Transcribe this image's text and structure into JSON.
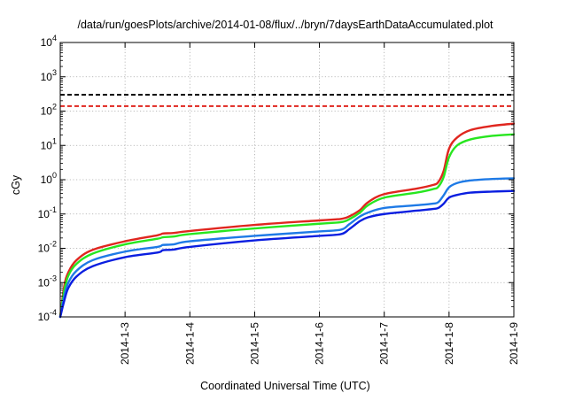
{
  "chart_data": {
    "type": "line",
    "title": "/data/run/goesPlots/archive/2014-01-08/flux/../bryn/7daysEarthDataAccumulated.plot",
    "xlabel": "Coordinated Universal Time (UTC)",
    "ylabel": "cGy",
    "x_tick_labels": [
      "2014-1-3",
      "2014-1-4",
      "2014-1-5",
      "2014-1-6",
      "2014-1-7",
      "2014-1-8",
      "2014-1-9"
    ],
    "x_ticks": [
      "2014-01-03",
      "2014-01-04",
      "2014-01-05",
      "2014-01-06",
      "2014-01-07",
      "2014-01-08",
      "2014-01-09"
    ],
    "xlim": [
      "2014-01-02T00:00",
      "2014-01-09T00:00"
    ],
    "y_scale": "log",
    "ylim": [
      0.0001,
      10000
    ],
    "y_ticks": [
      {
        "base": "10",
        "exp": "-4",
        "value": 0.0001
      },
      {
        "base": "10",
        "exp": "-3",
        "value": 0.001
      },
      {
        "base": "10",
        "exp": "-2",
        "value": 0.01
      },
      {
        "base": "10",
        "exp": "-1",
        "value": 0.1
      },
      {
        "base": "10",
        "exp": "0",
        "value": 1
      },
      {
        "base": "10",
        "exp": "1",
        "value": 10
      },
      {
        "base": "10",
        "exp": "2",
        "value": 100
      },
      {
        "base": "10",
        "exp": "3",
        "value": 1000
      },
      {
        "base": "10",
        "exp": "4",
        "value": 10000
      }
    ],
    "grid": true,
    "legend": "none",
    "series": [
      {
        "color": "#e0261f",
        "points": [
          [
            "2014-01-02T00:00",
            0.0001
          ],
          [
            "2014-01-02T01:30",
            0.0008
          ],
          [
            "2014-01-02T03:00",
            0.002
          ],
          [
            "2014-01-02T06:00",
            0.0045
          ],
          [
            "2014-01-02T12:00",
            0.009
          ],
          [
            "2014-01-03T00:00",
            0.016
          ],
          [
            "2014-01-03T12:00",
            0.024
          ],
          [
            "2014-01-03T14:00",
            0.027
          ],
          [
            "2014-01-03T18:00",
            0.028
          ],
          [
            "2014-01-04T00:00",
            0.032
          ],
          [
            "2014-01-05T00:00",
            0.048
          ],
          [
            "2014-01-06T00:00",
            0.065
          ],
          [
            "2014-01-06T08:00",
            0.072
          ],
          [
            "2014-01-06T11:00",
            0.085
          ],
          [
            "2014-01-06T15:00",
            0.13
          ],
          [
            "2014-01-06T18:00",
            0.22
          ],
          [
            "2014-01-07T00:00",
            0.38
          ],
          [
            "2014-01-07T12:00",
            0.55
          ],
          [
            "2014-01-07T18:00",
            0.7
          ],
          [
            "2014-01-07T20:00",
            0.85
          ],
          [
            "2014-01-07T22:00",
            1.8
          ],
          [
            "2014-01-08T00:00",
            8
          ],
          [
            "2014-01-08T03:00",
            17
          ],
          [
            "2014-01-08T08:00",
            28
          ],
          [
            "2014-01-08T16:00",
            37
          ],
          [
            "2014-01-09T00:00",
            43
          ]
        ]
      },
      {
        "color": "#27e61f",
        "points": [
          [
            "2014-01-02T00:00",
            0.0001
          ],
          [
            "2014-01-02T01:30",
            0.0006
          ],
          [
            "2014-01-02T03:00",
            0.0016
          ],
          [
            "2014-01-02T06:00",
            0.0035
          ],
          [
            "2014-01-02T12:00",
            0.007
          ],
          [
            "2014-01-03T00:00",
            0.013
          ],
          [
            "2014-01-03T12:00",
            0.019
          ],
          [
            "2014-01-03T14:00",
            0.021
          ],
          [
            "2014-01-03T18:00",
            0.022
          ],
          [
            "2014-01-04T00:00",
            0.026
          ],
          [
            "2014-01-05T00:00",
            0.038
          ],
          [
            "2014-01-06T00:00",
            0.052
          ],
          [
            "2014-01-06T08:00",
            0.058
          ],
          [
            "2014-01-06T11:00",
            0.07
          ],
          [
            "2014-01-06T15:00",
            0.11
          ],
          [
            "2014-01-06T18:00",
            0.18
          ],
          [
            "2014-01-07T00:00",
            0.3
          ],
          [
            "2014-01-07T12:00",
            0.42
          ],
          [
            "2014-01-07T18:00",
            0.53
          ],
          [
            "2014-01-07T20:00",
            0.62
          ],
          [
            "2014-01-07T22:00",
            1.2
          ],
          [
            "2014-01-08T00:00",
            4.5
          ],
          [
            "2014-01-08T03:00",
            10
          ],
          [
            "2014-01-08T08:00",
            15
          ],
          [
            "2014-01-08T16:00",
            19
          ],
          [
            "2014-01-09T00:00",
            21
          ]
        ]
      },
      {
        "color": "#1e7ae6",
        "points": [
          [
            "2014-01-02T00:00",
            0.0001
          ],
          [
            "2014-01-02T01:30",
            0.0004
          ],
          [
            "2014-01-02T03:00",
            0.001
          ],
          [
            "2014-01-02T06:00",
            0.0022
          ],
          [
            "2014-01-02T12:00",
            0.0045
          ],
          [
            "2014-01-03T00:00",
            0.008
          ],
          [
            "2014-01-03T12:00",
            0.011
          ],
          [
            "2014-01-03T14:00",
            0.0125
          ],
          [
            "2014-01-03T18:00",
            0.013
          ],
          [
            "2014-01-04T00:00",
            0.016
          ],
          [
            "2014-01-05T00:00",
            0.023
          ],
          [
            "2014-01-06T00:00",
            0.031
          ],
          [
            "2014-01-06T08:00",
            0.035
          ],
          [
            "2014-01-06T11:00",
            0.05
          ],
          [
            "2014-01-06T15:00",
            0.085
          ],
          [
            "2014-01-06T18:00",
            0.11
          ],
          [
            "2014-01-07T00:00",
            0.15
          ],
          [
            "2014-01-07T12:00",
            0.18
          ],
          [
            "2014-01-07T18:00",
            0.2
          ],
          [
            "2014-01-07T20:00",
            0.22
          ],
          [
            "2014-01-07T22:00",
            0.35
          ],
          [
            "2014-01-08T00:00",
            0.6
          ],
          [
            "2014-01-08T03:00",
            0.8
          ],
          [
            "2014-01-08T08:00",
            0.95
          ],
          [
            "2014-01-08T16:00",
            1.05
          ],
          [
            "2014-01-09T00:00",
            1.1
          ]
        ]
      },
      {
        "color": "#0a1ee0",
        "points": [
          [
            "2014-01-02T00:00",
            0.0001
          ],
          [
            "2014-01-02T01:30",
            0.0003
          ],
          [
            "2014-01-02T03:00",
            0.0007
          ],
          [
            "2014-01-02T06:00",
            0.0015
          ],
          [
            "2014-01-02T12:00",
            0.003
          ],
          [
            "2014-01-03T00:00",
            0.0055
          ],
          [
            "2014-01-03T12:00",
            0.0075
          ],
          [
            "2014-01-03T14:00",
            0.0088
          ],
          [
            "2014-01-03T18:00",
            0.0092
          ],
          [
            "2014-01-04T00:00",
            0.011
          ],
          [
            "2014-01-05T00:00",
            0.017
          ],
          [
            "2014-01-06T00:00",
            0.023
          ],
          [
            "2014-01-06T08:00",
            0.026
          ],
          [
            "2014-01-06T11:00",
            0.036
          ],
          [
            "2014-01-06T15:00",
            0.062
          ],
          [
            "2014-01-06T18:00",
            0.08
          ],
          [
            "2014-01-07T00:00",
            0.1
          ],
          [
            "2014-01-07T12:00",
            0.125
          ],
          [
            "2014-01-07T18:00",
            0.14
          ],
          [
            "2014-01-07T20:00",
            0.15
          ],
          [
            "2014-01-07T22:00",
            0.2
          ],
          [
            "2014-01-08T00:00",
            0.3
          ],
          [
            "2014-01-08T03:00",
            0.36
          ],
          [
            "2014-01-08T08:00",
            0.42
          ],
          [
            "2014-01-08T16:00",
            0.45
          ],
          [
            "2014-01-09T00:00",
            0.47
          ]
        ]
      }
    ],
    "threshold_lines": [
      {
        "value": 300,
        "color": "#000000",
        "style": "dashed"
      },
      {
        "value": 140,
        "color": "#e0261f",
        "style": "dashed"
      }
    ]
  }
}
